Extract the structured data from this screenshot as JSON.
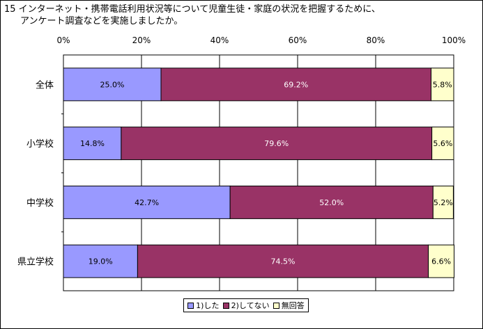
{
  "title": {
    "line1": "15  インターネット・携帯電話利用状況等について児童生徒・家庭の状況を把握するために、",
    "line2": "アンケート調査などを実施しましたか。"
  },
  "colors": {
    "series_1": "#9999ff",
    "series_2": "#993366",
    "series_3": "#ffffcc",
    "grid": "#000000"
  },
  "chart_data": {
    "type": "bar",
    "orientation": "horizontal",
    "stacked": "percent",
    "categories": [
      "全体",
      "小学校",
      "中学校",
      "県立学校"
    ],
    "series": [
      {
        "name": "1)した",
        "values": [
          25.0,
          14.8,
          42.7,
          19.0
        ],
        "labels": [
          "25.0%",
          "14.8%",
          "42.7%",
          "19.0%"
        ]
      },
      {
        "name": "2)してない",
        "values": [
          69.2,
          79.6,
          52.0,
          74.5
        ],
        "labels": [
          "69.2%",
          "79.6%",
          "52.0%",
          "74.5%"
        ]
      },
      {
        "name": "無回答",
        "values": [
          5.8,
          5.6,
          5.2,
          6.6
        ],
        "labels": [
          "5.8%",
          "5.6%",
          "5.2%",
          "6.6%"
        ]
      }
    ],
    "xlim": [
      0,
      100
    ],
    "xticks": [
      "0%",
      "20%",
      "40%",
      "60%",
      "80%",
      "100%"
    ],
    "grid": true,
    "legend": "bottom"
  }
}
